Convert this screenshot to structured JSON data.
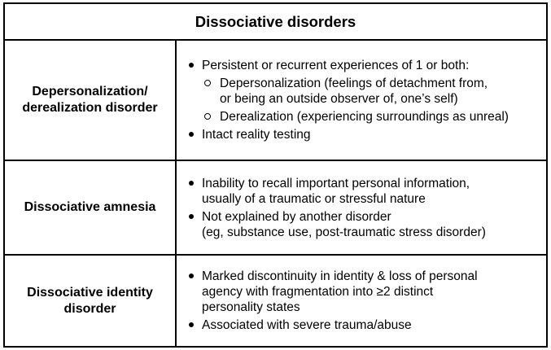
{
  "title": "Dissociative disorders",
  "rows": [
    {
      "label_line1": "Depersonalization/",
      "label_line2": "derealization disorder",
      "bullet1": "Persistent or recurrent experiences of 1 or both:",
      "sub1_line1": "Depersonalization (feelings of detachment from,",
      "sub1_line2": "or being an outside observer of, one’s self)",
      "sub2": "Derealization (experiencing surroundings as unreal)",
      "bullet2": "Intact reality testing"
    },
    {
      "label": "Dissociative amnesia",
      "bullet1_line1": "Inability to recall important personal information,",
      "bullet1_line2": "usually of a traumatic or stressful nature",
      "bullet2_line1": "Not explained by another disorder",
      "bullet2_line2": "(eg, substance use, post-traumatic stress disorder)"
    },
    {
      "label_line1": "Dissociative identity",
      "label_line2": "disorder",
      "bullet1_line1": "Marked discontinuity in identity & loss of personal",
      "bullet1_line2": "agency with fragmentation into ≥2 distinct",
      "bullet1_line3": "personality states",
      "bullet2": "Associated with severe trauma/abuse"
    }
  ]
}
